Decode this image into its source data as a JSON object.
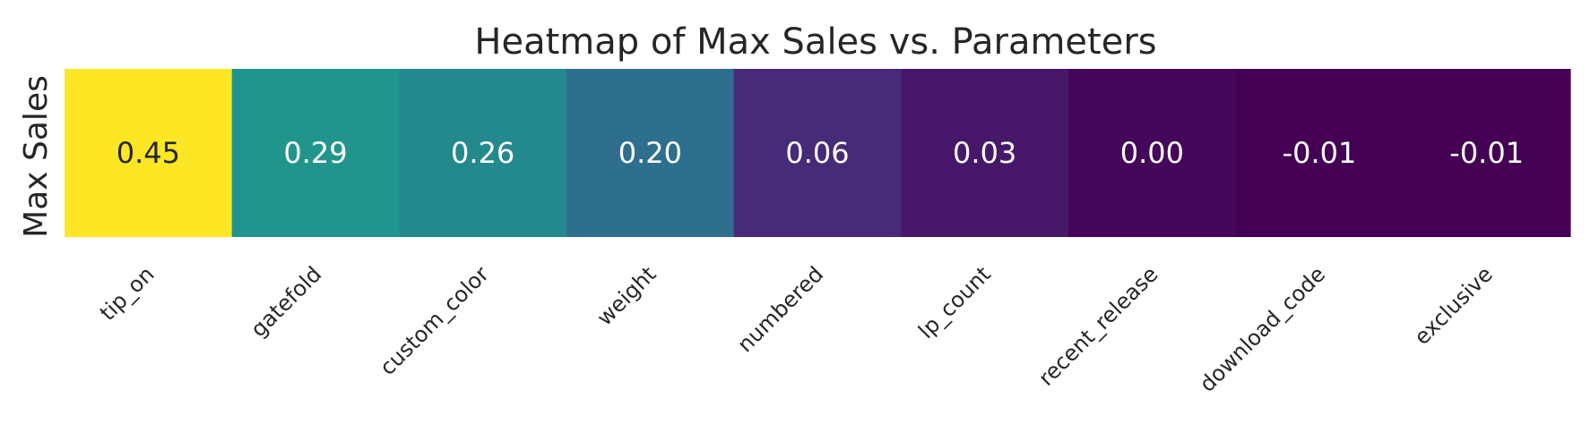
{
  "chart_data": {
    "type": "heatmap",
    "title": "Heatmap of Max Sales vs. Parameters",
    "ylabel": "Max Sales",
    "xlabel": "",
    "categories": [
      "tip_on",
      "gatefold",
      "custom_color",
      "weight",
      "numbered",
      "lp_count",
      "recent_release",
      "download_code",
      "exclusive"
    ],
    "values": [
      0.45,
      0.29,
      0.26,
      0.2,
      0.06,
      0.03,
      0.0,
      -0.01,
      -0.01
    ],
    "value_labels": [
      "0.45",
      "0.29",
      "0.26",
      "0.20",
      "0.06",
      "0.03",
      "0.00",
      "-0.01",
      "-0.01"
    ],
    "colormap": "viridis",
    "vmin": -0.01,
    "vmax": 0.45
  },
  "colors": {
    "text_dark": "#262626",
    "text_light": "#ffffff"
  }
}
